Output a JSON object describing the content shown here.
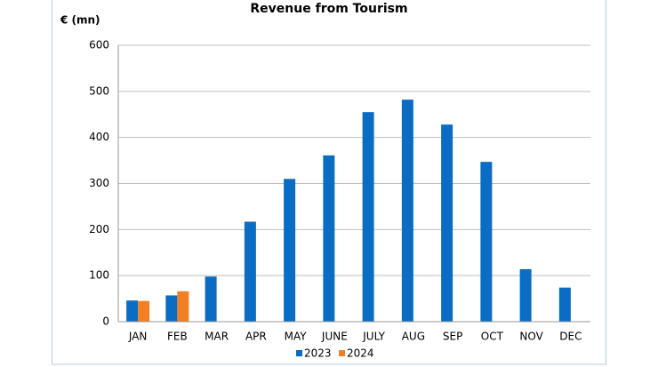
{
  "chart_data": {
    "type": "bar",
    "title": "Revenue from Tourism",
    "y_label": "€ (mn)",
    "categories": [
      "JAN",
      "FEB",
      "MAR",
      "APR",
      "MAY",
      "JUNE",
      "JULY",
      "AUG",
      "SEP",
      "OCT",
      "NOV",
      "DEC"
    ],
    "series": [
      {
        "name": "2023",
        "color": "#0a6cc2",
        "values": [
          46,
          57,
          98,
          217,
          310,
          361,
          455,
          482,
          428,
          347,
          114,
          74
        ]
      },
      {
        "name": "2024",
        "color": "#f28022",
        "values": [
          45,
          66,
          null,
          null,
          null,
          null,
          null,
          null,
          null,
          null,
          null,
          null
        ]
      }
    ],
    "ylim": [
      0,
      600
    ],
    "yticks": [
      0,
      100,
      200,
      300,
      400,
      500,
      600
    ],
    "grid": true
  }
}
